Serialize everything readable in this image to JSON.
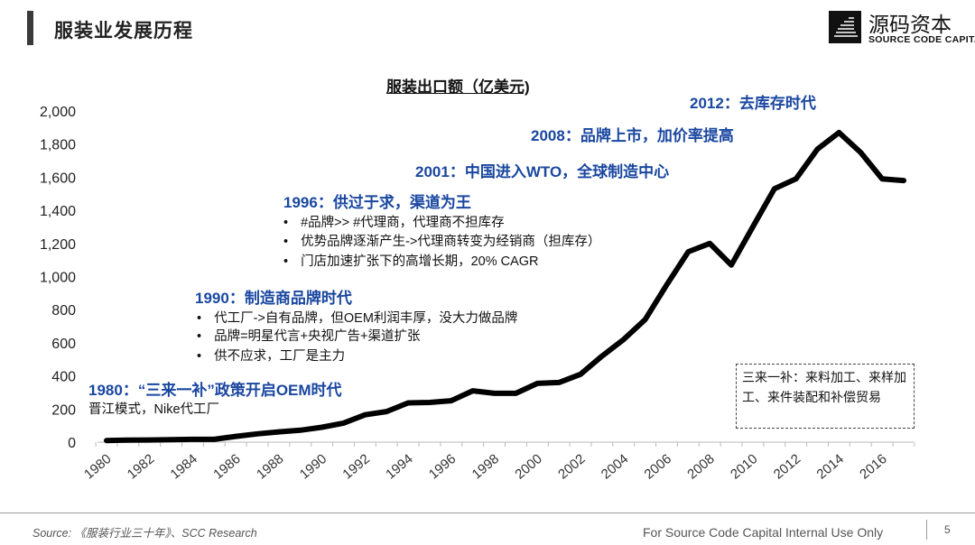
{
  "header": {
    "title": "服装业发展历程"
  },
  "logo": {
    "cn": "源码资本",
    "en": "SOURCE CODE CAPITAL"
  },
  "annotations": {
    "a1980": {
      "heading": "1980：“三来一补”政策开启OEM时代",
      "lines": [
        "晋江模式，Nike代工厂"
      ]
    },
    "a1990": {
      "heading": "1990：制造商品牌时代",
      "bullets": [
        "代工厂->自有品牌，但OEM利润丰厚，没大力做品牌",
        "品牌=明星代言+央视广告+渠道扩张",
        "供不应求，工厂是主力"
      ]
    },
    "a1996": {
      "heading": "1996：供过于求，渠道为王",
      "bullets": [
        "#品牌>> #代理商，代理商不担库存",
        "优势品牌逐渐产生->代理商转变为经销商（担库存）",
        "门店加速扩张下的高增长期，20% CAGR"
      ]
    },
    "a2001": {
      "heading": "2001：中国进入WTO，全球制造中心"
    },
    "a2008": {
      "heading": "2008：品牌上市，加价率提高"
    },
    "a2012": {
      "heading": "2012：去库存时代"
    },
    "note": "三来一补：来料加工、来样加工、来件装配和补偿贸易"
  },
  "footer": {
    "source": "Source: 《服装行业三十年》、SCC Research",
    "internal": "For Source Code Capital Internal Use Only",
    "page": "5"
  },
  "colors": {
    "annotation_heading": "#1a47a0",
    "line": "#000000"
  },
  "chart_data": {
    "type": "line",
    "title": "服装出口额（亿美元)",
    "xlabel": "",
    "ylabel": "",
    "ylim": [
      0,
      2000
    ],
    "yticks": [
      "0",
      "200",
      "400",
      "600",
      "800",
      "1,000",
      "1,200",
      "1,400",
      "1,600",
      "1,800",
      "2,000"
    ],
    "xticks": [
      "1980",
      "1982",
      "1984",
      "1986",
      "1988",
      "1990",
      "1992",
      "1994",
      "1996",
      "1998",
      "2000",
      "2002",
      "2004",
      "2006",
      "2008",
      "2010",
      "2012",
      "2014",
      "2016"
    ],
    "grid": false,
    "x": [
      1980,
      1981,
      1982,
      1983,
      1984,
      1985,
      1986,
      1987,
      1988,
      1989,
      1990,
      1991,
      1992,
      1993,
      1994,
      1995,
      1996,
      1997,
      1998,
      1999,
      2000,
      2001,
      2002,
      2003,
      2004,
      2005,
      2006,
      2007,
      2008,
      2009,
      2010,
      2011,
      2012,
      2013,
      2014,
      2015,
      2016,
      2017
    ],
    "values": [
      10,
      12,
      13,
      15,
      17,
      17,
      35,
      50,
      62,
      72,
      90,
      115,
      165,
      185,
      237,
      240,
      250,
      310,
      295,
      295,
      355,
      360,
      410,
      520,
      620,
      740,
      950,
      1150,
      1200,
      1070,
      1300,
      1530,
      1590,
      1770,
      1870,
      1750,
      1590,
      1580
    ]
  }
}
